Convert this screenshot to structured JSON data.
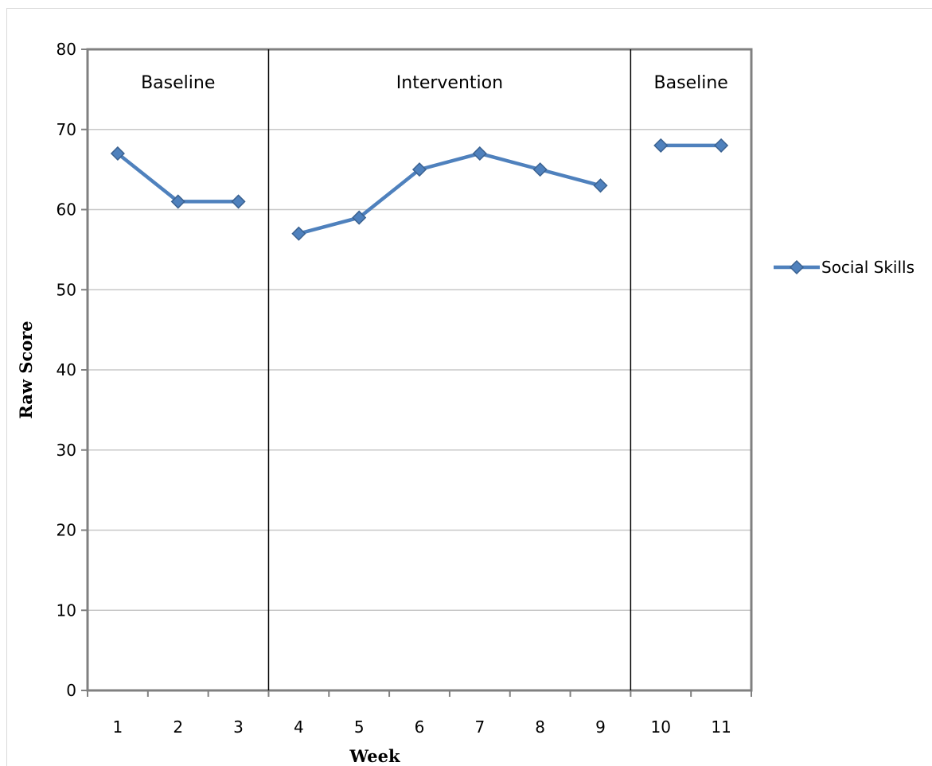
{
  "chart_data": {
    "type": "line",
    "title": "",
    "xlabel": "Week",
    "ylabel": "Raw Score",
    "ylim": [
      0,
      80
    ],
    "yticks": [
      0,
      10,
      20,
      30,
      40,
      50,
      60,
      70,
      80
    ],
    "categories": [
      "1",
      "2",
      "3",
      "4",
      "5",
      "6",
      "7",
      "8",
      "9",
      "10",
      "11"
    ],
    "series": [
      {
        "name": "Social Skills",
        "color": "#4f81bd",
        "segments": [
          {
            "x": [
              1,
              2,
              3
            ],
            "y": [
              67,
              61,
              61
            ]
          },
          {
            "x": [
              4,
              5,
              6,
              7,
              8,
              9
            ],
            "y": [
              57,
              59,
              65,
              67,
              65,
              63
            ]
          },
          {
            "x": [
              10,
              11
            ],
            "y": [
              68,
              68
            ]
          }
        ]
      }
    ],
    "phases": [
      {
        "label": "Baseline",
        "from": 1,
        "to": 3
      },
      {
        "label": "Intervention",
        "from": 4,
        "to": 9
      },
      {
        "label": "Baseline",
        "from": 10,
        "to": 11
      }
    ],
    "grid": true,
    "legend_position": "right"
  }
}
